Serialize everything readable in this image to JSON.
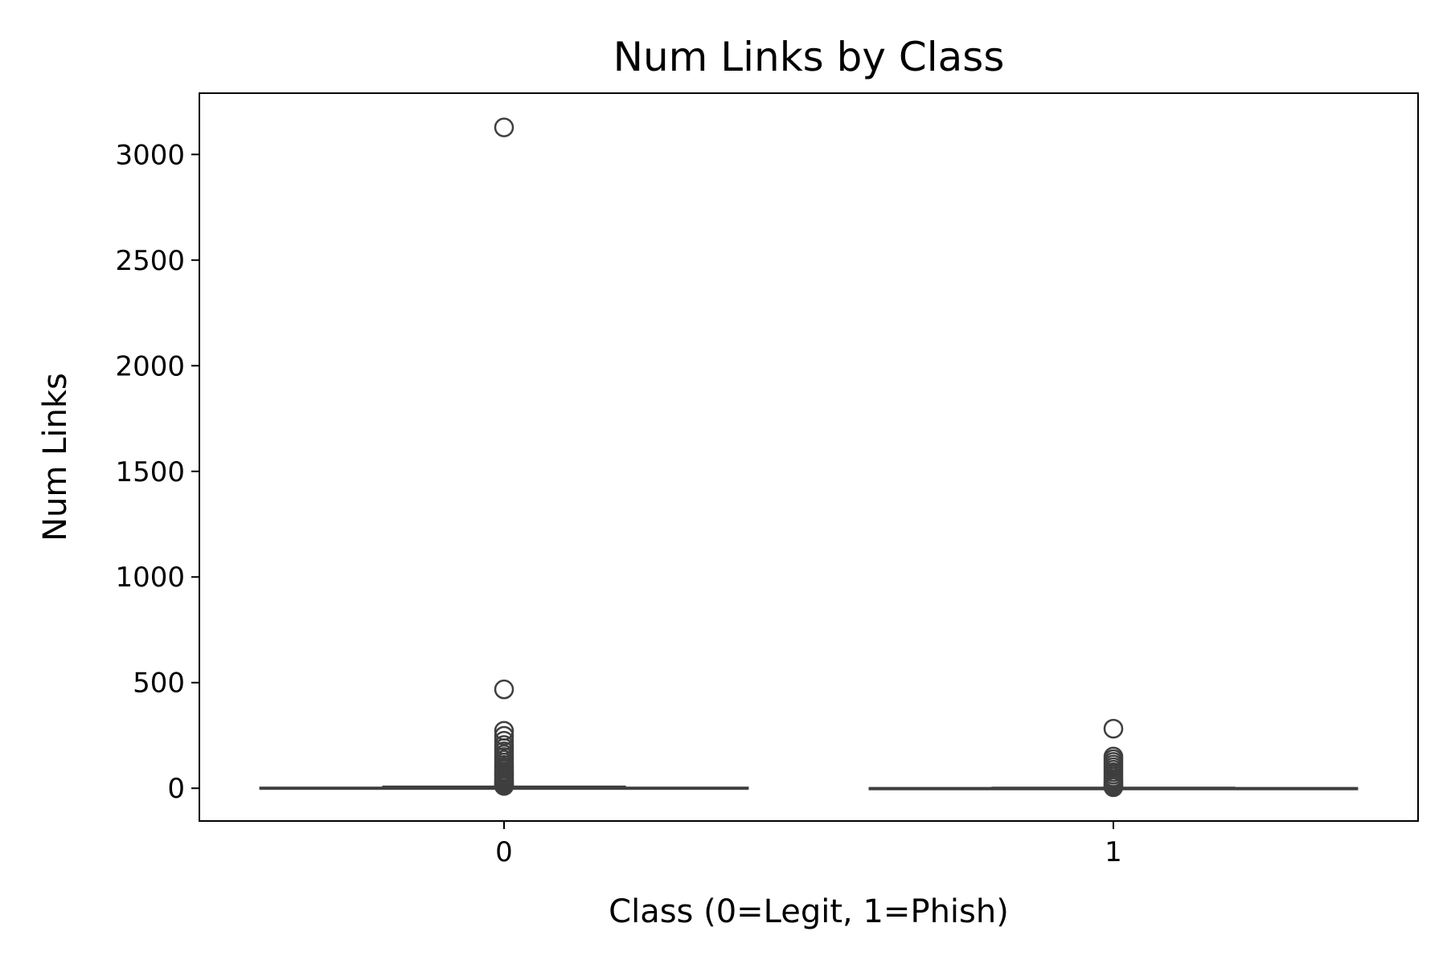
{
  "chart_data": {
    "type": "box",
    "title": "Num Links by Class",
    "xlabel": "Class (0=Legit, 1=Phish)",
    "ylabel": "Num Links",
    "categories": [
      "0",
      "1"
    ],
    "yticks": [
      0,
      500,
      1000,
      1500,
      2000,
      2500,
      3000
    ],
    "ylim": [
      -155,
      3290
    ],
    "grid": false,
    "colors": {
      "box_edge": "#3f3f3f",
      "axes": "#000000"
    },
    "boxes": [
      {
        "category": "0",
        "min": 0,
        "q1": 0,
        "median": 1,
        "q3": 3,
        "max": 8,
        "outliers": [
          3128,
          468,
          272,
          248,
          225,
          205,
          190,
          175,
          160,
          148,
          135,
          122,
          110,
          100,
          90,
          80,
          72,
          64,
          56,
          48,
          40,
          33,
          26,
          20,
          15,
          11
        ]
      },
      {
        "category": "1",
        "min": 0,
        "q1": 0,
        "median": 0,
        "q3": 1,
        "max": 3,
        "outliers": [
          282,
          150,
          138,
          125,
          112,
          100,
          88,
          76,
          64,
          52,
          42,
          33,
          25,
          18,
          12,
          8,
          5
        ]
      }
    ]
  }
}
